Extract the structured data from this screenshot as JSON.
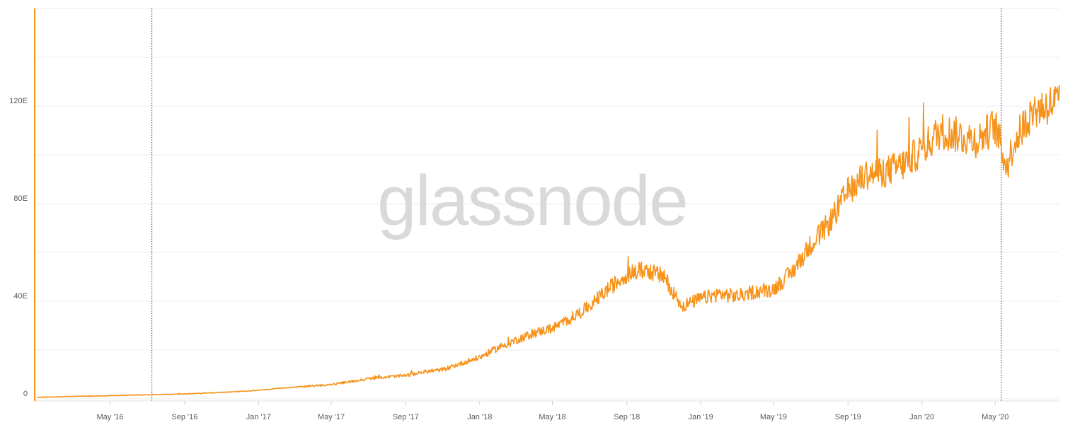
{
  "watermark": "glassnode",
  "colors": {
    "series": "#F7931A",
    "grid": "#ececec",
    "axis": "#5a5a5a",
    "event_line": "#333333"
  },
  "chart_data": {
    "type": "line",
    "title": "",
    "xlabel": "",
    "ylabel": "",
    "grid": true,
    "legend": "none",
    "x_range": [
      "2016-01-01",
      "2020-08-15"
    ],
    "ylim": [
      0,
      160
    ],
    "y_ticks": [
      {
        "value": 0,
        "label": "0"
      },
      {
        "value": 40,
        "label": "40E"
      },
      {
        "value": 80,
        "label": "80E"
      },
      {
        "value": 120,
        "label": "120E"
      }
    ],
    "y_gridlines": [
      0,
      20,
      40,
      60,
      80,
      100,
      120,
      140,
      160
    ],
    "x_ticks": [
      {
        "date": "2016-05-01",
        "label": "May '16"
      },
      {
        "date": "2016-09-01",
        "label": "Sep '16"
      },
      {
        "date": "2017-01-01",
        "label": "Jan '17"
      },
      {
        "date": "2017-05-01",
        "label": "May '17"
      },
      {
        "date": "2017-09-01",
        "label": "Sep '17"
      },
      {
        "date": "2018-01-01",
        "label": "Jan '18"
      },
      {
        "date": "2018-05-01",
        "label": "May '18"
      },
      {
        "date": "2018-09-01",
        "label": "Sep '18"
      },
      {
        "date": "2019-01-01",
        "label": "Jan '19"
      },
      {
        "date": "2019-05-01",
        "label": "May '19"
      },
      {
        "date": "2019-09-01",
        "label": "Sep '19"
      },
      {
        "date": "2020-01-01",
        "label": "Jan '20"
      },
      {
        "date": "2020-05-01",
        "label": "May '20"
      }
    ],
    "event_lines": [
      "2016-07-09",
      "2020-05-11"
    ],
    "series": [
      {
        "points": [
          [
            "2016-01-01",
            0.6
          ],
          [
            "2016-02-01",
            0.8
          ],
          [
            "2016-03-01",
            1.0
          ],
          [
            "2016-04-01",
            1.1
          ],
          [
            "2016-05-01",
            1.3
          ],
          [
            "2016-06-01",
            1.5
          ],
          [
            "2016-07-01",
            1.7
          ],
          [
            "2016-08-01",
            1.8
          ],
          [
            "2016-09-01",
            2.0
          ],
          [
            "2016-10-01",
            2.3
          ],
          [
            "2016-11-01",
            2.6
          ],
          [
            "2016-12-01",
            3.0
          ],
          [
            "2017-01-01",
            3.5
          ],
          [
            "2017-02-01",
            4.2
          ],
          [
            "2017-03-01",
            4.8
          ],
          [
            "2017-04-01",
            5.3
          ],
          [
            "2017-05-01",
            5.8
          ],
          [
            "2017-06-01",
            7.0
          ],
          [
            "2017-07-01",
            8.2
          ],
          [
            "2017-08-01",
            9.0
          ],
          [
            "2017-09-01",
            9.5
          ],
          [
            "2017-10-01",
            11.0
          ],
          [
            "2017-11-01",
            12.0
          ],
          [
            "2017-12-01",
            14.5
          ],
          [
            "2018-01-01",
            17.0
          ],
          [
            "2018-02-01",
            21.0
          ],
          [
            "2018-03-01",
            24.0
          ],
          [
            "2018-04-01",
            27.0
          ],
          [
            "2018-05-01",
            29.0
          ],
          [
            "2018-06-01",
            33.0
          ],
          [
            "2018-07-01",
            38.0
          ],
          [
            "2018-08-01",
            45.0
          ],
          [
            "2018-09-01",
            51.0
          ],
          [
            "2018-10-01",
            53.0
          ],
          [
            "2018-11-01",
            50.0
          ],
          [
            "2018-12-01",
            38.0
          ],
          [
            "2019-01-01",
            41.0
          ],
          [
            "2019-02-01",
            43.0
          ],
          [
            "2019-03-01",
            42.0
          ],
          [
            "2019-04-01",
            44.0
          ],
          [
            "2019-05-01",
            45.0
          ],
          [
            "2019-06-01",
            52.0
          ],
          [
            "2019-07-01",
            63.0
          ],
          [
            "2019-08-01",
            72.0
          ],
          [
            "2019-09-01",
            85.0
          ],
          [
            "2019-10-01",
            92.0
          ],
          [
            "2019-11-01",
            93.0
          ],
          [
            "2019-12-01",
            96.0
          ],
          [
            "2020-01-01",
            102.0
          ],
          [
            "2020-02-01",
            110.0
          ],
          [
            "2020-03-01",
            108.0
          ],
          [
            "2020-04-01",
            106.0
          ],
          [
            "2020-05-01",
            112.0
          ],
          [
            "2020-05-20",
            95.0
          ],
          [
            "2020-06-01",
            105.0
          ],
          [
            "2020-07-01",
            118.0
          ],
          [
            "2020-08-15",
            122.0
          ]
        ]
      }
    ]
  }
}
